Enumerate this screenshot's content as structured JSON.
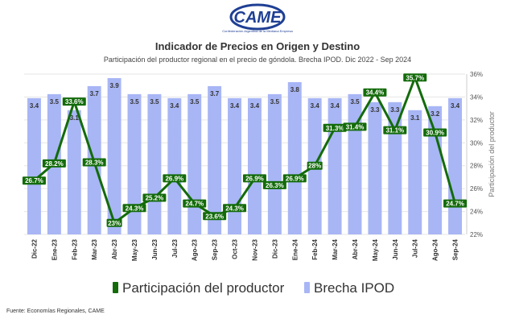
{
  "logo": {
    "text": "CAME",
    "tagline": "Confederación Argentina de la Mediana Empresa"
  },
  "title": "Indicador de Precios en Origen y Destino",
  "subtitle": "Participación del productor regional en el precio de góndola. Brecha IPOD. Dic 2022 - Sep 2024",
  "source": "Fuente: Economías Regionales, CAME",
  "colors": {
    "bar": "#a8b6f5",
    "line": "#136b0a",
    "grid": "#e6e6e6",
    "text": "#333333"
  },
  "chart_data": {
    "type": "bar+line",
    "categories": [
      "Dic-22",
      "Ene-23",
      "Feb-23",
      "Mar-23",
      "Abr-23",
      "May-23",
      "Jun-23",
      "Jul-23",
      "Ago-23",
      "Sep-23",
      "Oct-23",
      "Nov-23",
      "Dic-23",
      "Ene-24",
      "Feb-24",
      "Mar-24",
      "Abr-24",
      "May-24",
      "Jun-24",
      "Jul-24",
      "Ago-24",
      "Sep-24"
    ],
    "series": [
      {
        "name": "Brecha IPOD",
        "type": "bar",
        "axis": "left",
        "values": [
          3.4,
          3.5,
          3.1,
          3.7,
          3.9,
          3.5,
          3.5,
          3.4,
          3.5,
          3.7,
          3.4,
          3.4,
          3.5,
          3.8,
          3.4,
          3.4,
          3.5,
          3.3,
          3.3,
          3.1,
          3.2,
          3.4
        ],
        "labels": [
          "3.4",
          "3.5",
          "3.1",
          "3.7",
          "3.9",
          "3.5",
          "3.5",
          "3.4",
          "3.5",
          "3.7",
          "3.4",
          "3.4",
          "3.5",
          "3.8",
          "3.4",
          "3.4",
          "3.5",
          "3.3",
          "3.3",
          "3.1",
          "3.2",
          "3.4"
        ]
      },
      {
        "name": "Participación del productor",
        "type": "line",
        "axis": "right",
        "unit": "%",
        "values": [
          26.7,
          28.2,
          33.6,
          28.3,
          23.0,
          24.3,
          25.2,
          26.9,
          24.7,
          23.6,
          24.3,
          26.9,
          26.3,
          26.9,
          28.0,
          31.3,
          31.4,
          34.4,
          31.1,
          35.7,
          30.9,
          24.7
        ],
        "labels": [
          "26.7%",
          "28.2%",
          "33.6%",
          "28.3%",
          "23%",
          "24.3%",
          "25.2%",
          "26.9%",
          "24.7%",
          "23.6%",
          "24.3%",
          "26.9%",
          "26.3%",
          "26.9%",
          "28%",
          "31.3%",
          "31.4%",
          "34.4%",
          "31.1%",
          "35.7%",
          "30.9%",
          "24.7%"
        ]
      }
    ],
    "y_right": {
      "label": "Participación del productor",
      "range": [
        22,
        36
      ],
      "ticks": [
        "22%",
        "24%",
        "26%",
        "28%",
        "30%",
        "32%",
        "34%",
        "36%"
      ]
    },
    "y_left": {
      "range": [
        0,
        4
      ]
    },
    "legend": {
      "position": "bottom",
      "items": [
        "Participación del productor",
        "Brecha IPOD"
      ]
    },
    "grid": true
  }
}
